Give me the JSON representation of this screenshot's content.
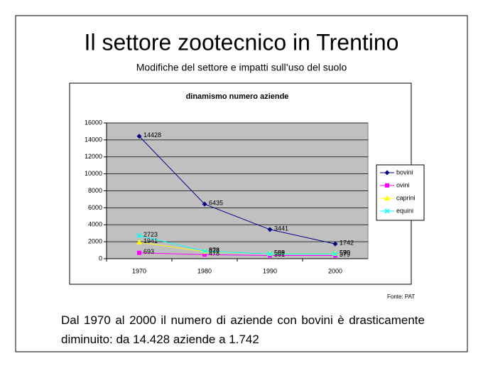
{
  "title": "Il settore zootecnico in Trentino",
  "subtitle": "Modifiche del settore e impatti sull’uso del suolo",
  "source": "Fonte: PAT",
  "text": "Dal 1970 al 2000 il numero di aziende con bovini è drasticamente diminuito: da 14.428 aziende a 1.742",
  "chart_data": {
    "type": "line",
    "title": "dinamismo numero aziende",
    "categories": [
      "1970",
      "1980",
      "1990",
      "2000"
    ],
    "series": [
      {
        "name": "bovini",
        "color": "#000080",
        "values": [
          14428,
          6435,
          3441,
          1742
        ]
      },
      {
        "name": "ovini",
        "color": "#ff00ff",
        "values": [
          693,
          478,
          381,
          379
        ]
      },
      {
        "name": "caprini",
        "color": "#ffff00",
        "values": [
          1941,
          828,
          588,
          590
        ]
      },
      {
        "name": "equini",
        "color": "#00ffff",
        "values": [
          2723,
          878,
          569,
          570
        ]
      }
    ],
    "ylim": [
      0,
      16000
    ],
    "yticks": [
      0,
      2000,
      4000,
      6000,
      8000,
      10000,
      12000,
      14000,
      16000
    ],
    "grid": true,
    "legend": "right"
  }
}
